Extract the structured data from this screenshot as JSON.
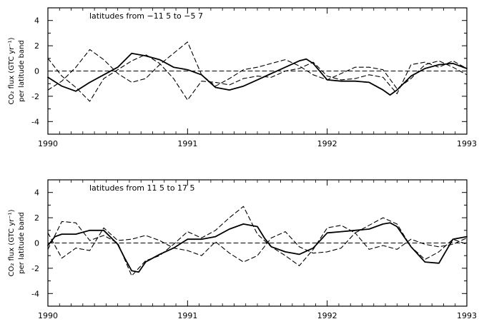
{
  "chart_data": [
    {
      "type": "line",
      "title": "latitudes from −11 5 to −5 7",
      "ylabel": "CO₂ flux (GTC yr⁻¹)",
      "ylabel2": "per latitude band",
      "xlim": [
        1990,
        1993
      ],
      "ylim": [
        -5,
        5
      ],
      "xticks": [
        1990,
        1991,
        1992,
        1993
      ],
      "yticks": [
        -4,
        -2,
        0,
        2,
        4
      ],
      "series": [
        {
          "style": "solid",
          "x": [
            1990.0,
            1990.1,
            1990.2,
            1990.3,
            1990.4,
            1990.5,
            1990.6,
            1990.7,
            1990.8,
            1990.9,
            1991.0,
            1991.1,
            1991.2,
            1991.3,
            1991.4,
            1991.5,
            1991.6,
            1991.7,
            1991.8,
            1991.85,
            1991.9,
            1992.0,
            1992.1,
            1992.2,
            1992.3,
            1992.4,
            1992.45,
            1992.5,
            1992.6,
            1992.7,
            1992.8,
            1992.9,
            1993.0
          ],
          "y": [
            -0.5,
            -1.2,
            -1.6,
            -0.9,
            -0.3,
            0.3,
            1.4,
            1.2,
            0.9,
            0.3,
            0.1,
            -0.3,
            -1.3,
            -1.5,
            -1.2,
            -0.7,
            -0.2,
            0.3,
            0.8,
            0.95,
            0.6,
            -0.7,
            -0.8,
            -0.8,
            -0.9,
            -1.5,
            -1.9,
            -1.5,
            -0.4,
            0.2,
            0.5,
            0.6,
            0.2
          ]
        },
        {
          "style": "dashed",
          "x": [
            1990.0,
            1990.1,
            1990.2,
            1990.3,
            1990.4,
            1990.5,
            1990.6,
            1990.7,
            1990.8,
            1990.9,
            1991.0,
            1991.1,
            1991.2,
            1991.3,
            1991.4,
            1991.5,
            1991.6,
            1991.7,
            1991.8,
            1991.9,
            1992.0,
            1992.1,
            1992.2,
            1992.3,
            1992.4,
            1992.5,
            1992.6,
            1992.7,
            1992.8,
            1992.9,
            1993.0
          ],
          "y": [
            -1.5,
            -0.8,
            0.3,
            1.7,
            0.9,
            -0.2,
            -0.9,
            -0.6,
            0.5,
            1.4,
            2.3,
            -0.3,
            -1.2,
            -0.6,
            0.1,
            0.3,
            0.6,
            0.9,
            0.4,
            -0.3,
            -0.7,
            -0.2,
            0.3,
            0.3,
            0.1,
            -1.4,
            -0.6,
            0.5,
            0.8,
            0.3,
            -0.3
          ]
        },
        {
          "style": "dashed",
          "x": [
            1990.0,
            1990.1,
            1990.2,
            1990.3,
            1990.4,
            1990.5,
            1990.6,
            1990.7,
            1990.8,
            1990.9,
            1991.0,
            1991.1,
            1991.2,
            1991.3,
            1991.4,
            1991.5,
            1991.6,
            1991.7,
            1991.8,
            1991.9,
            1992.0,
            1992.1,
            1992.2,
            1992.3,
            1992.4,
            1992.5,
            1992.6,
            1992.7,
            1992.8,
            1992.9,
            1993.0
          ],
          "y": [
            1.0,
            -0.4,
            -1.3,
            -2.4,
            -0.6,
            0.1,
            0.8,
            1.3,
            0.6,
            -0.6,
            -2.3,
            -0.8,
            -0.9,
            -1.1,
            -0.6,
            -0.4,
            -0.5,
            0.0,
            0.2,
            0.7,
            -0.4,
            -0.7,
            -0.6,
            -0.3,
            -0.5,
            -1.8,
            0.5,
            0.7,
            0.3,
            0.8,
            0.2
          ]
        },
        {
          "style": "dashed",
          "x": [
            1990,
            1993
          ],
          "y": [
            0,
            0
          ]
        }
      ]
    },
    {
      "type": "line",
      "title": "latitudes from 11 5 to 17 5",
      "ylabel": "CO₂ flux (GTC yr⁻¹)",
      "ylabel2": "per latitude band",
      "xlim": [
        1990,
        1993
      ],
      "ylim": [
        -5,
        5
      ],
      "xticks": [
        1990,
        1991,
        1992,
        1993
      ],
      "yticks": [
        -4,
        -2,
        0,
        2,
        4
      ],
      "series": [
        {
          "style": "solid",
          "x": [
            1990.0,
            1990.05,
            1990.1,
            1990.2,
            1990.3,
            1990.4,
            1990.5,
            1990.55,
            1990.6,
            1990.65,
            1990.7,
            1990.8,
            1990.9,
            1991.0,
            1991.1,
            1991.2,
            1991.3,
            1991.4,
            1991.5,
            1991.55,
            1991.6,
            1991.7,
            1991.8,
            1991.9,
            1992.0,
            1992.1,
            1992.2,
            1992.3,
            1992.4,
            1992.45,
            1992.5,
            1992.6,
            1992.7,
            1992.8,
            1992.9,
            1993.0
          ],
          "y": [
            -0.2,
            0.5,
            0.7,
            0.7,
            1.0,
            1.0,
            -0.1,
            -1.2,
            -2.2,
            -2.3,
            -1.5,
            -0.9,
            -0.4,
            0.3,
            0.3,
            0.5,
            1.1,
            1.5,
            1.3,
            0.4,
            -0.3,
            -0.7,
            -0.9,
            -0.4,
            0.8,
            0.9,
            1.0,
            1.1,
            1.5,
            1.6,
            1.3,
            -0.3,
            -1.5,
            -1.6,
            0.3,
            0.5
          ]
        },
        {
          "style": "dashed",
          "x": [
            1990.0,
            1990.1,
            1990.2,
            1990.3,
            1990.4,
            1990.5,
            1990.6,
            1990.7,
            1990.8,
            1990.9,
            1991.0,
            1991.1,
            1991.2,
            1991.3,
            1991.4,
            1991.5,
            1991.6,
            1991.7,
            1991.8,
            1991.9,
            1992.0,
            1992.1,
            1992.2,
            1992.3,
            1992.4,
            1992.5,
            1992.6,
            1992.7,
            1992.8,
            1992.9,
            1993.0
          ],
          "y": [
            -0.5,
            1.7,
            1.6,
            0.2,
            0.6,
            0.0,
            -2.6,
            -1.4,
            -1.0,
            -0.1,
            0.9,
            0.4,
            1.0,
            2.0,
            2.9,
            0.7,
            -0.3,
            -1.0,
            -1.8,
            -0.5,
            1.2,
            1.4,
            0.8,
            1.4,
            2.0,
            1.5,
            -0.3,
            -1.3,
            -0.7,
            0.3,
            -0.1
          ]
        },
        {
          "style": "dashed",
          "x": [
            1990.0,
            1990.1,
            1990.2,
            1990.3,
            1990.4,
            1990.5,
            1990.6,
            1990.7,
            1990.8,
            1990.9,
            1991.0,
            1991.1,
            1991.2,
            1991.3,
            1991.4,
            1991.5,
            1991.6,
            1991.7,
            1991.8,
            1991.9,
            1992.0,
            1992.1,
            1992.2,
            1992.3,
            1992.4,
            1992.5,
            1992.6,
            1992.7,
            1992.8,
            1992.9,
            1993.0
          ],
          "y": [
            0.8,
            -1.2,
            -0.4,
            -0.6,
            1.2,
            0.2,
            0.3,
            0.6,
            0.2,
            -0.4,
            -0.6,
            -1.0,
            0.1,
            -0.8,
            -1.5,
            -1.0,
            0.4,
            0.9,
            -0.3,
            -0.8,
            -0.7,
            -0.4,
            0.8,
            -0.5,
            -0.2,
            -0.5,
            0.3,
            -0.1,
            -0.3,
            -0.1,
            0.4
          ]
        },
        {
          "style": "dashed",
          "x": [
            1990,
            1993
          ],
          "y": [
            0,
            0
          ]
        }
      ]
    }
  ]
}
